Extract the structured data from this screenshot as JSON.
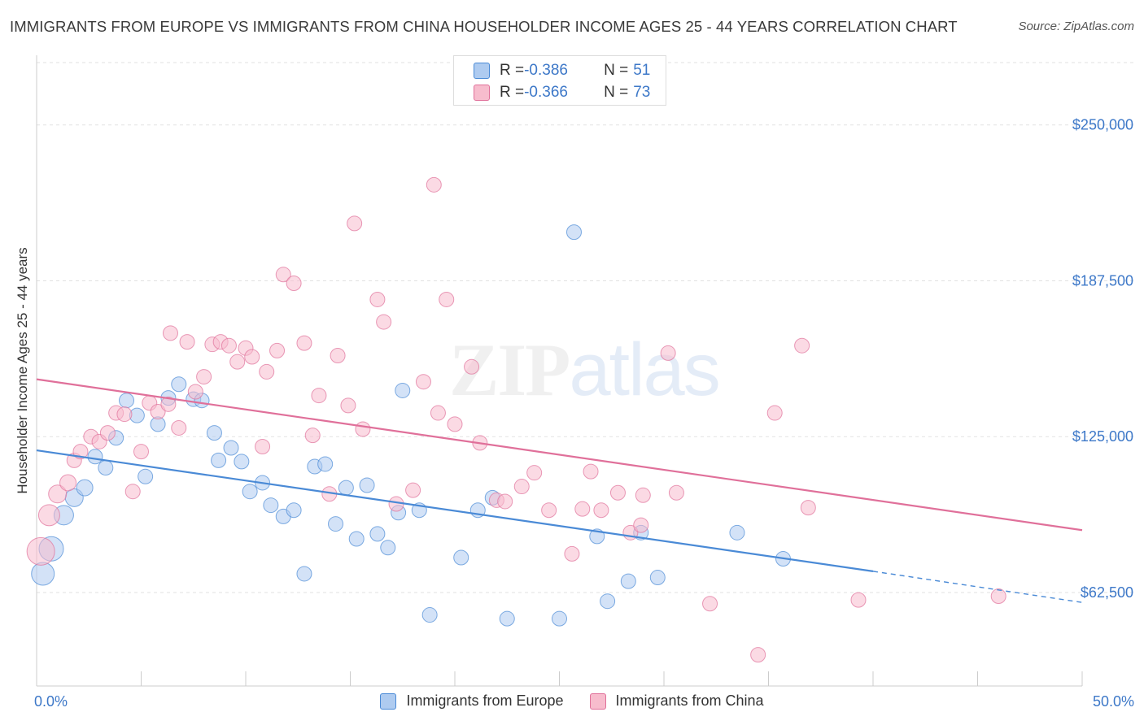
{
  "header": {
    "title": "IMMIGRANTS FROM EUROPE VS IMMIGRANTS FROM CHINA HOUSEHOLDER INCOME AGES 25 - 44 YEARS CORRELATION CHART",
    "source": "Source: ZipAtlas.com"
  },
  "watermark": {
    "part1": "ZIP",
    "part2": "atlas"
  },
  "stats": [
    {
      "r_label": "R = ",
      "r_value": "-0.386",
      "n_label": "N = ",
      "n_value": "51",
      "color": "#aecbf0"
    },
    {
      "r_label": "R = ",
      "r_value": "-0.366",
      "n_label": "N = ",
      "n_value": "73",
      "color": "#f7bccd"
    }
  ],
  "chart_data": {
    "type": "scatter",
    "title": "IMMIGRANTS FROM EUROPE VS IMMIGRANTS FROM CHINA HOUSEHOLDER INCOME AGES 25 - 44 YEARS CORRELATION CHART",
    "ylabel": "Householder Income Ages 25 - 44 years",
    "xlim": [
      0,
      50
    ],
    "ylim": [
      25000,
      275000
    ],
    "x_tick_labels": [
      "0.0%",
      "50.0%"
    ],
    "y_ticks": [
      {
        "value": 62500,
        "label": "$62,500"
      },
      {
        "value": 125000,
        "label": "$125,000"
      },
      {
        "value": 187500,
        "label": "$187,500"
      },
      {
        "value": 250000,
        "label": "$250,000"
      }
    ],
    "grid": true,
    "legend_position": "bottom",
    "series": [
      {
        "name": "Immigrants from Europe",
        "color": "#4a8ad6",
        "fill": "#aecbf0",
        "trend": {
          "x0": 0,
          "y0": 119500,
          "x1": 40,
          "y1": 71000,
          "dash_to_x": 50,
          "dash_to_y": 58500
        },
        "points": [
          [
            0.3,
            70000,
            28
          ],
          [
            0.7,
            80000,
            30
          ],
          [
            1.3,
            93500,
            24
          ],
          [
            1.8,
            100500,
            22
          ],
          [
            2.3,
            104500,
            20
          ],
          [
            2.8,
            117000,
            18
          ],
          [
            3.3,
            112500,
            18
          ],
          [
            3.8,
            124500,
            18
          ],
          [
            4.3,
            139500,
            18
          ],
          [
            4.8,
            133500,
            18
          ],
          [
            5.2,
            109000,
            18
          ],
          [
            5.8,
            130000,
            18
          ],
          [
            6.3,
            140500,
            18
          ],
          [
            6.8,
            146000,
            18
          ],
          [
            7.5,
            140000,
            18
          ],
          [
            7.9,
            139500,
            18
          ],
          [
            8.5,
            126500,
            18
          ],
          [
            8.7,
            115500,
            18
          ],
          [
            9.3,
            120500,
            18
          ],
          [
            9.8,
            115000,
            18
          ],
          [
            10.2,
            103000,
            18
          ],
          [
            10.8,
            106500,
            18
          ],
          [
            11.2,
            97500,
            18
          ],
          [
            11.8,
            93000,
            18
          ],
          [
            12.3,
            95500,
            18
          ],
          [
            12.8,
            70000,
            18
          ],
          [
            13.3,
            113000,
            18
          ],
          [
            13.8,
            114000,
            18
          ],
          [
            14.3,
            90000,
            18
          ],
          [
            14.8,
            104500,
            18
          ],
          [
            15.3,
            84000,
            18
          ],
          [
            15.8,
            105500,
            18
          ],
          [
            16.3,
            86000,
            18
          ],
          [
            16.8,
            80500,
            18
          ],
          [
            17.3,
            94500,
            18
          ],
          [
            17.5,
            143500,
            18
          ],
          [
            18.3,
            95500,
            18
          ],
          [
            18.8,
            53500,
            18
          ],
          [
            20.3,
            76500,
            18
          ],
          [
            21.1,
            95500,
            18
          ],
          [
            21.8,
            100500,
            18
          ],
          [
            22.5,
            52000,
            18
          ],
          [
            25.0,
            52000,
            18
          ],
          [
            25.7,
            207000,
            18
          ],
          [
            26.8,
            85000,
            18
          ],
          [
            27.3,
            59000,
            18
          ],
          [
            28.3,
            67000,
            18
          ],
          [
            28.9,
            86500,
            18
          ],
          [
            29.7,
            68500,
            18
          ],
          [
            33.5,
            86500,
            18
          ],
          [
            35.7,
            76000,
            18
          ]
        ]
      },
      {
        "name": "Immigrants from China",
        "color": "#e0709a",
        "fill": "#f7bccd",
        "trend": {
          "x0": 0,
          "y0": 148000,
          "x1": 50,
          "y1": 87500
        },
        "points": [
          [
            0.2,
            79000,
            34
          ],
          [
            0.6,
            93500,
            26
          ],
          [
            1.0,
            102000,
            22
          ],
          [
            1.5,
            106500,
            20
          ],
          [
            1.8,
            115500,
            18
          ],
          [
            2.1,
            119000,
            18
          ],
          [
            2.6,
            125000,
            18
          ],
          [
            3.0,
            123000,
            18
          ],
          [
            3.4,
            126500,
            18
          ],
          [
            3.8,
            134500,
            18
          ],
          [
            4.2,
            134000,
            18
          ],
          [
            4.6,
            103000,
            18
          ],
          [
            5.0,
            119000,
            18
          ],
          [
            5.4,
            138500,
            18
          ],
          [
            5.8,
            135000,
            18
          ],
          [
            6.3,
            138000,
            18
          ],
          [
            6.4,
            166500,
            18
          ],
          [
            6.8,
            128500,
            18
          ],
          [
            7.2,
            163000,
            18
          ],
          [
            7.6,
            143000,
            18
          ],
          [
            8.0,
            149000,
            18
          ],
          [
            8.4,
            162000,
            18
          ],
          [
            8.8,
            163000,
            18
          ],
          [
            9.2,
            161500,
            18
          ],
          [
            9.6,
            155000,
            18
          ],
          [
            10.0,
            160500,
            18
          ],
          [
            10.3,
            157000,
            18
          ],
          [
            10.8,
            121000,
            18
          ],
          [
            11.0,
            151000,
            18
          ],
          [
            11.5,
            159500,
            18
          ],
          [
            11.8,
            190000,
            18
          ],
          [
            12.3,
            186500,
            18
          ],
          [
            12.8,
            162500,
            18
          ],
          [
            13.2,
            125500,
            18
          ],
          [
            13.5,
            141500,
            18
          ],
          [
            14.0,
            102000,
            18
          ],
          [
            14.4,
            157500,
            18
          ],
          [
            14.9,
            137500,
            18
          ],
          [
            15.2,
            210500,
            18
          ],
          [
            15.6,
            128000,
            18
          ],
          [
            16.3,
            180000,
            18
          ],
          [
            16.6,
            171000,
            18
          ],
          [
            17.2,
            98000,
            18
          ],
          [
            18.0,
            103500,
            18
          ],
          [
            18.5,
            147000,
            18
          ],
          [
            19.2,
            134500,
            18
          ],
          [
            19.0,
            226000,
            18
          ],
          [
            19.6,
            180000,
            18
          ],
          [
            20.0,
            130000,
            18
          ],
          [
            20.8,
            153000,
            18
          ],
          [
            21.2,
            122500,
            18
          ],
          [
            22.0,
            99500,
            18
          ],
          [
            22.4,
            99000,
            18
          ],
          [
            23.2,
            105000,
            18
          ],
          [
            23.8,
            110500,
            18
          ],
          [
            24.5,
            95500,
            18
          ],
          [
            25.6,
            78000,
            18
          ],
          [
            26.1,
            96000,
            18
          ],
          [
            26.5,
            111000,
            18
          ],
          [
            27.0,
            95500,
            18
          ],
          [
            27.8,
            102500,
            18
          ],
          [
            28.4,
            86500,
            18
          ],
          [
            29.0,
            101500,
            18
          ],
          [
            28.9,
            89500,
            18
          ],
          [
            30.2,
            158500,
            18
          ],
          [
            30.6,
            102500,
            18
          ],
          [
            32.2,
            58000,
            18
          ],
          [
            34.5,
            37500,
            18
          ],
          [
            35.3,
            134500,
            18
          ],
          [
            36.6,
            161500,
            18
          ],
          [
            36.9,
            96500,
            18
          ],
          [
            39.3,
            59500,
            18
          ],
          [
            46.0,
            61000,
            18
          ]
        ]
      }
    ]
  }
}
